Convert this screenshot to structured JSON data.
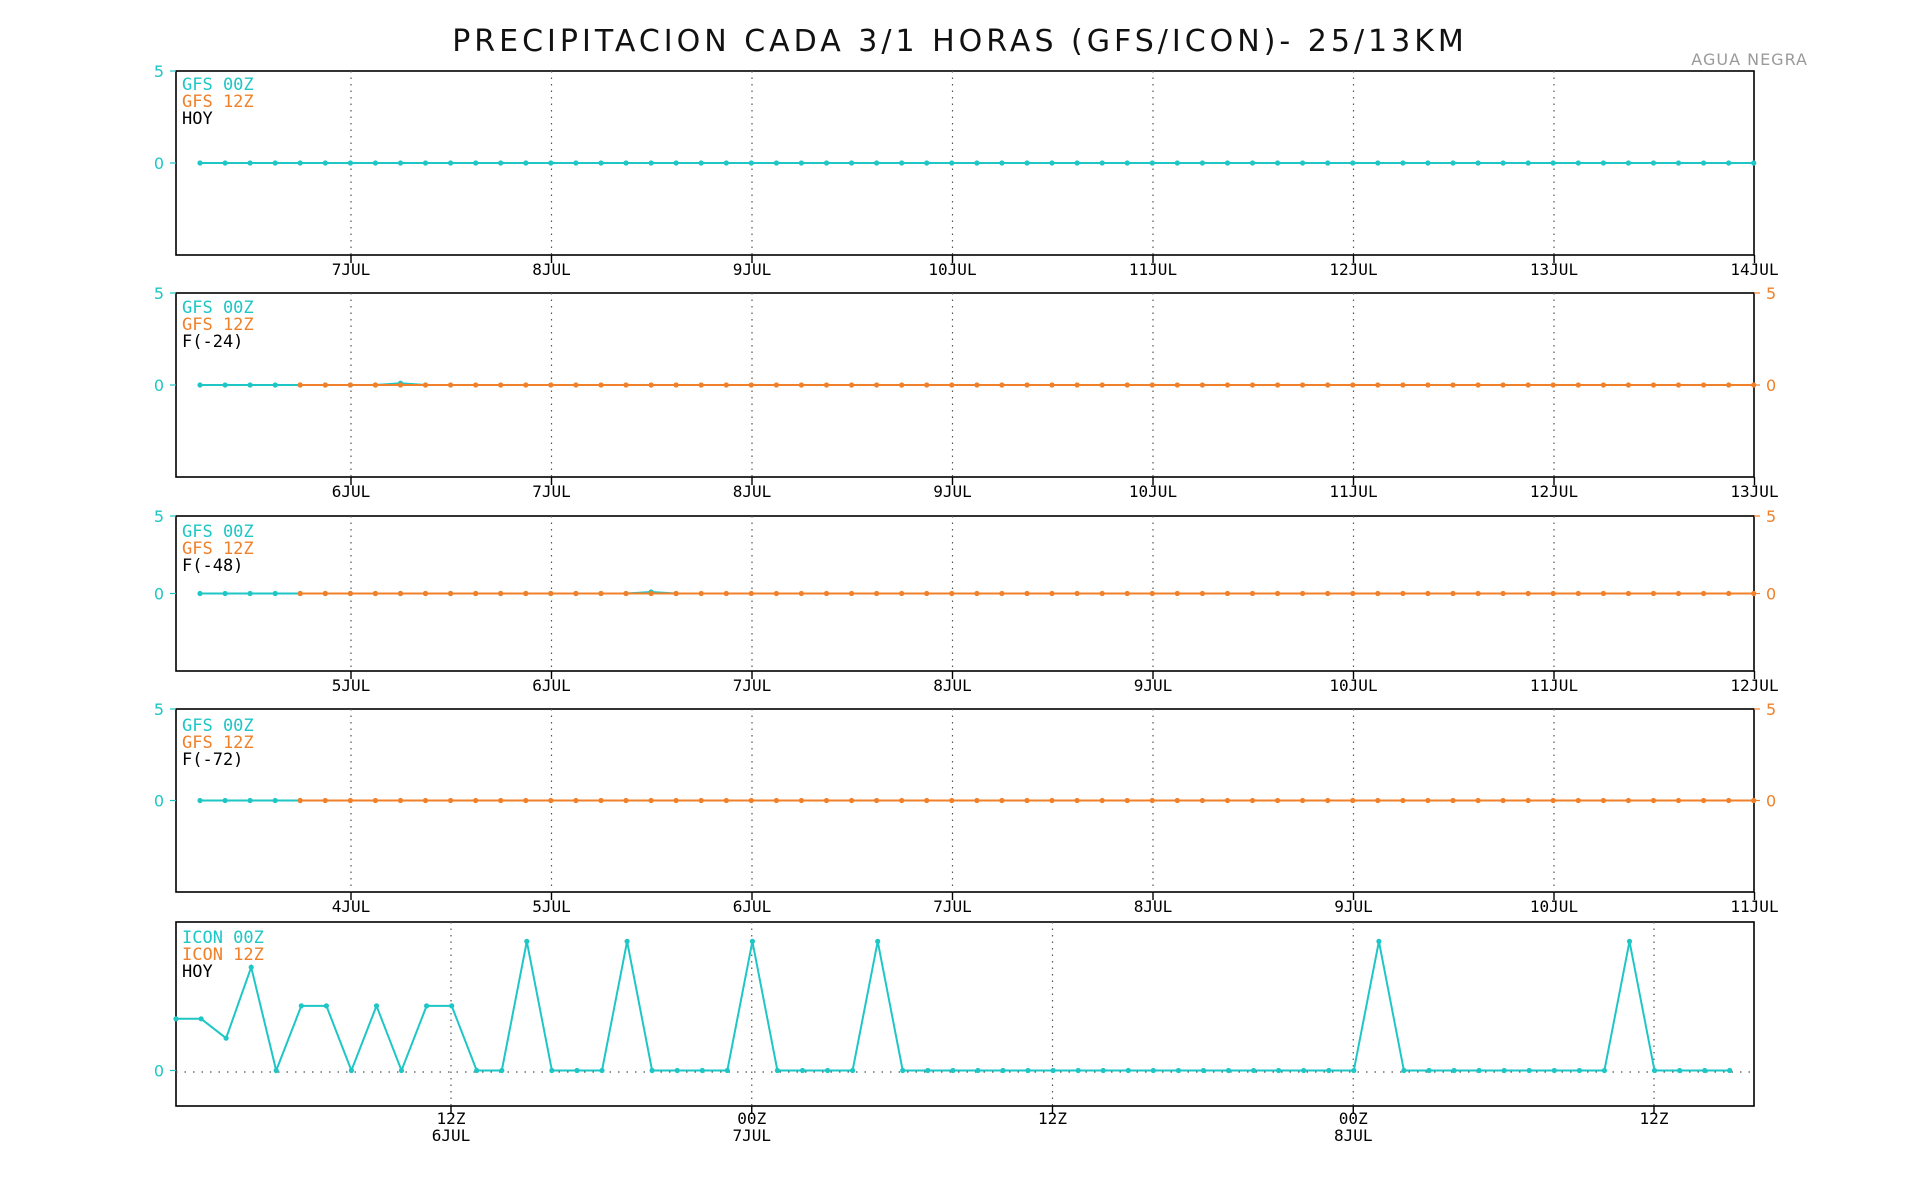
{
  "title": "PRECIPITACION CADA 3/1 HORAS (GFS/ICON)- 25/13KM",
  "station": "AGUA NEGRA",
  "colors": {
    "s00": "#1fc6c6",
    "s12": "#f0802a",
    "axis": "#000000",
    "grid": "#555555"
  },
  "chart_data": [
    {
      "type": "line",
      "legend": [
        "GFS 00Z",
        "GFS 12Z",
        "HOY"
      ],
      "left_ticks": [
        "5",
        "0"
      ],
      "right_ticks": [],
      "x_tick_labels": [
        "7JUL",
        "8JUL",
        "9JUL",
        "10JUL",
        "11JUL",
        "12JUL",
        "13JUL",
        "14JUL"
      ],
      "series": [
        {
          "name": "GFS 00Z",
          "start_index": 0,
          "values": [
            0,
            0,
            0,
            0,
            0,
            0,
            0,
            0,
            0,
            0,
            0,
            0,
            0,
            0,
            0,
            0,
            0,
            0,
            0,
            0,
            0,
            0,
            0,
            0,
            0,
            0,
            0,
            0,
            0,
            0,
            0,
            0,
            0,
            0,
            0,
            0,
            0,
            0,
            0,
            0,
            0,
            0,
            0,
            0,
            0,
            0,
            0,
            0,
            0,
            0,
            0,
            0,
            0,
            0,
            0,
            0,
            0,
            0,
            0,
            0,
            0,
            0,
            0,
            0
          ]
        }
      ],
      "ylim": [
        -5,
        5
      ]
    },
    {
      "type": "line",
      "legend": [
        "GFS 00Z",
        "GFS 12Z",
        "F(-24)"
      ],
      "left_ticks": [
        "5",
        "0"
      ],
      "right_ticks": [
        "5",
        "0"
      ],
      "x_tick_labels": [
        "6JUL",
        "7JUL",
        "8JUL",
        "9JUL",
        "10JUL",
        "11JUL",
        "12JUL",
        "13JUL"
      ],
      "series": [
        {
          "name": "GFS 00Z",
          "start_index": 0,
          "values": [
            0,
            0,
            0,
            0,
            0,
            0,
            0,
            0,
            0.1,
            0
          ]
        },
        {
          "name": "GFS 12Z",
          "start_index": 4,
          "values": [
            0,
            0,
            0,
            0,
            0,
            0,
            0,
            0,
            0,
            0,
            0,
            0,
            0,
            0,
            0,
            0,
            0,
            0,
            0,
            0,
            0,
            0,
            0,
            0,
            0,
            0,
            0,
            0,
            0,
            0,
            0,
            0,
            0,
            0,
            0,
            0,
            0,
            0,
            0,
            0,
            0,
            0,
            0,
            0,
            0,
            0,
            0,
            0,
            0,
            0,
            0,
            0,
            0,
            0,
            0,
            0,
            0,
            0,
            0,
            0
          ]
        }
      ],
      "ylim": [
        -5,
        5
      ]
    },
    {
      "type": "line",
      "legend": [
        "GFS 00Z",
        "GFS 12Z",
        "F(-48)"
      ],
      "left_ticks": [
        "5",
        "0"
      ],
      "right_ticks": [
        "5",
        "0"
      ],
      "x_tick_labels": [
        "5JUL",
        "6JUL",
        "7JUL",
        "8JUL",
        "9JUL",
        "10JUL",
        "11JUL",
        "12JUL"
      ],
      "series": [
        {
          "name": "GFS 00Z",
          "start_index": 0,
          "values": [
            0,
            0,
            0,
            0,
            0,
            0,
            0,
            0,
            0,
            0,
            0,
            0,
            0,
            0,
            0,
            0,
            0,
            0,
            0.1,
            0
          ]
        },
        {
          "name": "GFS 12Z",
          "start_index": 4,
          "values": [
            0,
            0,
            0,
            0,
            0,
            0,
            0,
            0,
            0,
            0,
            0,
            0,
            0,
            0,
            0,
            0,
            0,
            0,
            0,
            0,
            0,
            0,
            0,
            0,
            0,
            0,
            0,
            0,
            0,
            0,
            0,
            0,
            0,
            0,
            0,
            0,
            0,
            0,
            0,
            0,
            0,
            0,
            0,
            0,
            0,
            0,
            0,
            0,
            0,
            0,
            0,
            0,
            0,
            0,
            0,
            0,
            0,
            0,
            0,
            0
          ]
        }
      ],
      "ylim": [
        -5,
        5
      ]
    },
    {
      "type": "line",
      "legend": [
        "GFS 00Z",
        "GFS 12Z",
        "F(-72)"
      ],
      "left_ticks": [
        "5",
        "0"
      ],
      "right_ticks": [
        "5",
        "0"
      ],
      "x_tick_labels": [
        "4JUL",
        "5JUL",
        "6JUL",
        "7JUL",
        "8JUL",
        "9JUL",
        "10JUL",
        "11JUL"
      ],
      "series": [
        {
          "name": "GFS 00Z",
          "start_index": 0,
          "values": [
            0,
            0,
            0,
            0,
            0
          ]
        },
        {
          "name": "GFS 12Z",
          "start_index": 4,
          "values": [
            0,
            0,
            0,
            0,
            0,
            0,
            0,
            0,
            0,
            0,
            0,
            0,
            0,
            0,
            0,
            0,
            0,
            0,
            0,
            0,
            0,
            0,
            0,
            0,
            0,
            0,
            0,
            0,
            0,
            0,
            0,
            0,
            0,
            0,
            0,
            0,
            0,
            0,
            0,
            0,
            0,
            0,
            0,
            0,
            0,
            0,
            0,
            0,
            0,
            0,
            0,
            0,
            0,
            0,
            0,
            0,
            0,
            0,
            0,
            0
          ]
        }
      ],
      "ylim": [
        -5,
        5
      ]
    },
    {
      "type": "line",
      "legend": [
        "ICON 00Z",
        "ICON 12Z",
        "HOY"
      ],
      "left_ticks": [
        "0"
      ],
      "right_ticks": [],
      "x_tick_labels": [
        {
          "line1": "12Z",
          "line2": "6JUL"
        },
        {
          "line1": "00Z",
          "line2": "7JUL"
        },
        {
          "line1": "12Z",
          "line2": ""
        },
        {
          "line1": "00Z",
          "line2": "8JUL"
        },
        {
          "line1": "12Z",
          "line2": ""
        }
      ],
      "series": [
        {
          "name": "ICON 00Z",
          "values": [
            0.8,
            0.8,
            0.5,
            1.6,
            0,
            1.0,
            1.0,
            0,
            1.0,
            0,
            1.0,
            1.0,
            0,
            0,
            2.0,
            0,
            0,
            0,
            2.0,
            0,
            0,
            0,
            0,
            2.0,
            0,
            0,
            0,
            0,
            2.0,
            0,
            0,
            0,
            0,
            0,
            0,
            0,
            0,
            0,
            0,
            0,
            0,
            0,
            0,
            0,
            0,
            0,
            0,
            0,
            2.0,
            0,
            0,
            0,
            0,
            0,
            0,
            0,
            0,
            0,
            2.0,
            0,
            0,
            0,
            0,
            0
          ]
        }
      ],
      "ylim": [
        -0.55,
        2.3
      ]
    }
  ]
}
